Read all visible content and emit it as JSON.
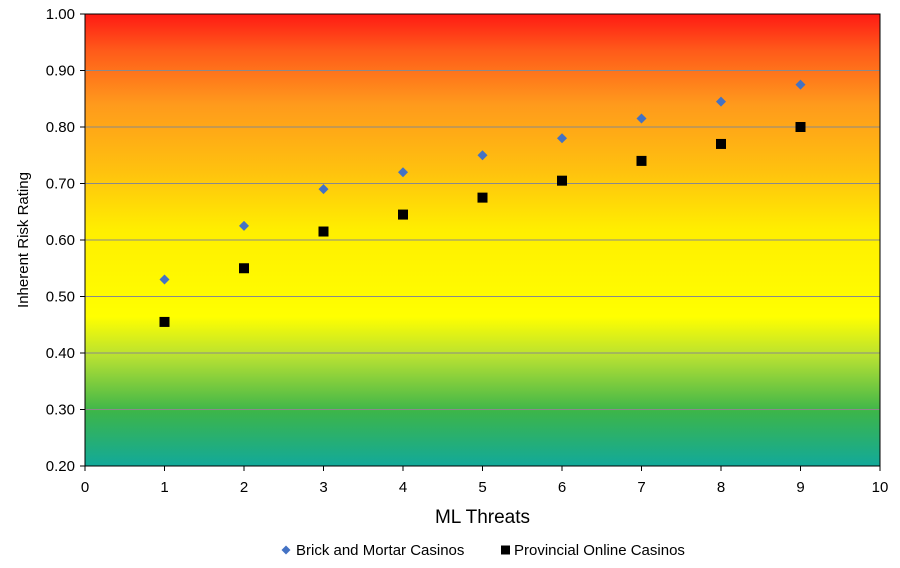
{
  "chart_data": {
    "type": "scatter",
    "title": "",
    "xlabel": "ML Threats",
    "ylabel": "Inherent Risk Rating",
    "xlim": [
      0,
      10
    ],
    "ylim": [
      0.2,
      1.0
    ],
    "x_ticks": [
      "0",
      "1",
      "2",
      "3",
      "4",
      "5",
      "6",
      "7",
      "8",
      "9",
      "10"
    ],
    "y_ticks": [
      "0.20",
      "0.30",
      "0.40",
      "0.50",
      "0.60",
      "0.70",
      "0.80",
      "0.90",
      "1.00"
    ],
    "grid": true,
    "background": "vertical gradient from teal (low) through yellow to red (high)",
    "legend_position": "bottom",
    "x": [
      1,
      2,
      3,
      4,
      5,
      6,
      7,
      8,
      9
    ],
    "series": [
      {
        "name": "Brick and Mortar Casinos",
        "marker": "diamond",
        "color": "#4472C4",
        "values": [
          0.53,
          0.625,
          0.69,
          0.72,
          0.75,
          0.78,
          0.815,
          0.845,
          0.875
        ]
      },
      {
        "name": "Provincial Online Casinos",
        "marker": "square",
        "color": "#000000",
        "values": [
          0.455,
          0.55,
          0.615,
          0.645,
          0.675,
          0.705,
          0.74,
          0.77,
          0.8
        ]
      }
    ]
  }
}
